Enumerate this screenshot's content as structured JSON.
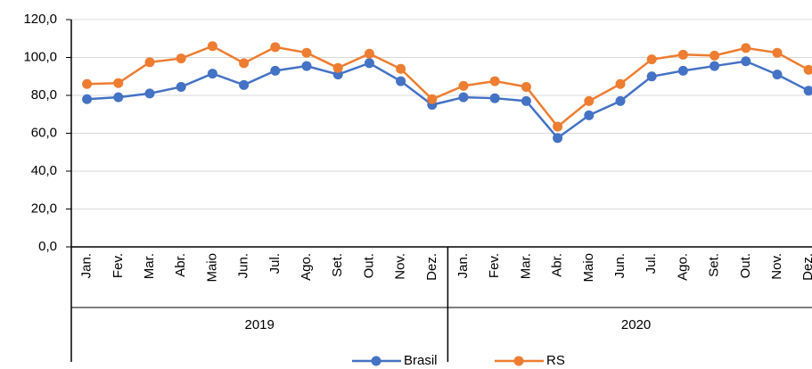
{
  "chart_data": {
    "type": "line",
    "categories": [
      "Jan.",
      "Fev.",
      "Mar.",
      "Abr.",
      "Maio",
      "Jun.",
      "Jul.",
      "Ago.",
      "Set.",
      "Out.",
      "Nov.",
      "Dez.",
      "Jan.",
      "Fev.",
      "Mar.",
      "Abr.",
      "Maio",
      "Jun.",
      "Jul.",
      "Ago.",
      "Set.",
      "Out.",
      "Nov.",
      "Dez."
    ],
    "category_groups": [
      "2019",
      "2020"
    ],
    "series": [
      {
        "name": "Brasil",
        "color": "#4472c4",
        "values": [
          78,
          79,
          81,
          84.5,
          91.5,
          85.5,
          93,
          95.5,
          91,
          97,
          87.5,
          75,
          79,
          78.5,
          77,
          57.5,
          69.5,
          77,
          90,
          93,
          95.5,
          98,
          91,
          82.5
        ]
      },
      {
        "name": "RS",
        "color": "#ed7d31",
        "values": [
          86,
          86.5,
          97.5,
          99.5,
          106,
          97,
          105.5,
          102.5,
          94.5,
          102,
          94,
          78,
          85,
          87.5,
          84.5,
          63.5,
          77,
          86,
          99,
          101.5,
          101,
          105,
          102.5,
          93.5
        ]
      }
    ],
    "ylim": [
      0,
      120
    ],
    "yticks": [
      {
        "value": 0,
        "label": "0,0"
      },
      {
        "value": 20,
        "label": "20,0"
      },
      {
        "value": 40,
        "label": "40,0"
      },
      {
        "value": 60,
        "label": "60,0"
      },
      {
        "value": 80,
        "label": "80,0"
      },
      {
        "value": 100,
        "label": "100,0"
      },
      {
        "value": 120,
        "label": "120,0"
      }
    ],
    "grid": true,
    "legend": "bottom"
  }
}
